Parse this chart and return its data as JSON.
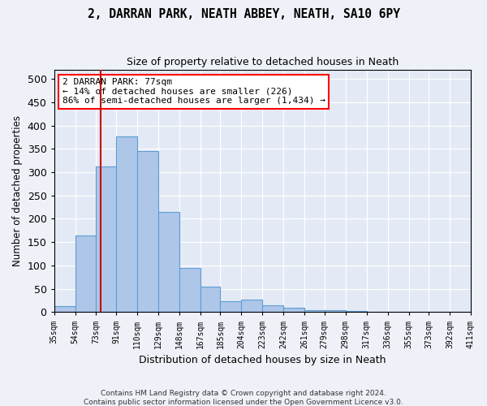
{
  "title": "2, DARRAN PARK, NEATH ABBEY, NEATH, SA10 6PY",
  "subtitle": "Size of property relative to detached houses in Neath",
  "xlabel": "Distribution of detached houses by size in Neath",
  "ylabel": "Number of detached properties",
  "footer_line1": "Contains HM Land Registry data © Crown copyright and database right 2024.",
  "footer_line2": "Contains public sector information licensed under the Open Government Licence v3.0.",
  "annotation_title": "2 DARRAN PARK: 77sqm",
  "annotation_line2": "← 14% of detached houses are smaller (226)",
  "annotation_line3": "86% of semi-detached houses are larger (1,434) →",
  "bar_color": "#aec6e8",
  "bar_edge_color": "#5a9fd4",
  "vline_x": 77,
  "vline_color": "#cc0000",
  "all_edges": [
    35,
    54,
    73,
    91,
    110,
    129,
    148,
    167,
    185,
    204,
    223,
    242,
    261,
    279,
    298,
    317,
    336,
    355,
    373,
    392,
    411
  ],
  "tick_labels": [
    "35sqm",
    "54sqm",
    "73sqm",
    "91sqm",
    "110sqm",
    "129sqm",
    "148sqm",
    "167sqm",
    "185sqm",
    "204sqm",
    "223sqm",
    "242sqm",
    "261sqm",
    "279sqm",
    "298sqm",
    "317sqm",
    "336sqm",
    "355sqm",
    "373sqm",
    "392sqm",
    "411sqm"
  ],
  "bar_heights": [
    13,
    165,
    313,
    377,
    345,
    215,
    94,
    55,
    24,
    27,
    14,
    9,
    5,
    4,
    2,
    0,
    1,
    0,
    0,
    0
  ],
  "ylim": [
    0,
    520
  ],
  "yticks": [
    0,
    50,
    100,
    150,
    200,
    250,
    300,
    350,
    400,
    450,
    500
  ],
  "background_color": "#eef2f8",
  "plot_bg_color": "#e4eaf5"
}
